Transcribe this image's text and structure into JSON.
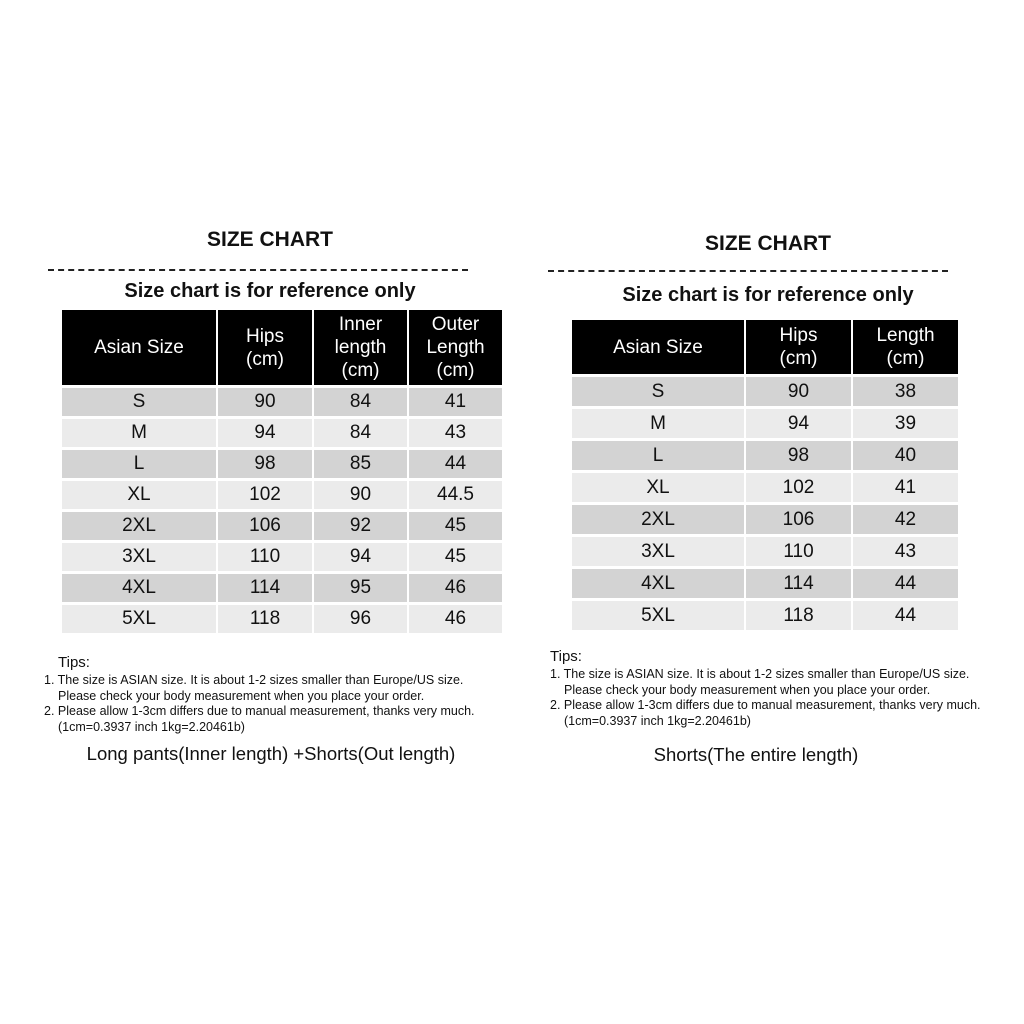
{
  "left": {
    "title": "SIZE CHART",
    "subtitle": "Size chart is for reference only",
    "headers": [
      "Asian Size",
      "Hips\n(cm)",
      "Inner\nlength\n(cm)",
      "Outer\nLength\n(cm)"
    ],
    "rows": [
      [
        "S",
        "90",
        "84",
        "41"
      ],
      [
        "M",
        "94",
        "84",
        "43"
      ],
      [
        "L",
        "98",
        "85",
        "44"
      ],
      [
        "XL",
        "102",
        "90",
        "44.5"
      ],
      [
        "2XL",
        "106",
        "92",
        "45"
      ],
      [
        "3XL",
        "110",
        "94",
        "45"
      ],
      [
        "4XL",
        "114",
        "95",
        "46"
      ],
      [
        "5XL",
        "118",
        "96",
        "46"
      ]
    ],
    "tips_heading": "Tips:",
    "tips": [
      "1. The size is ASIAN size. It is about 1-2 sizes smaller than Europe/US size.",
      "Please check your body measurement when you place your order.",
      "2. Please allow 1-3cm differs due to manual measurement, thanks very much.",
      "(1cm=0.3937 inch 1kg=2.20461b)"
    ],
    "caption": "Long pants(Inner length) +Shorts(Out length)"
  },
  "right": {
    "title": "SIZE CHART",
    "subtitle": "Size chart is for reference only",
    "headers": [
      "Asian Size",
      "Hips\n(cm)",
      "Length\n(cm)"
    ],
    "rows": [
      [
        "S",
        "90",
        "38"
      ],
      [
        "M",
        "94",
        "39"
      ],
      [
        "L",
        "98",
        "40"
      ],
      [
        "XL",
        "102",
        "41"
      ],
      [
        "2XL",
        "106",
        "42"
      ],
      [
        "3XL",
        "110",
        "43"
      ],
      [
        "4XL",
        "114",
        "44"
      ],
      [
        "5XL",
        "118",
        "44"
      ]
    ],
    "tips_heading": "Tips:",
    "tips": [
      "1. The size is ASIAN size. It is about 1-2 sizes smaller than Europe/US size.",
      "Please check your body measurement when you place your order.",
      "2. Please allow 1-3cm differs due to manual measurement, thanks very much.",
      "(1cm=0.3937 inch 1kg=2.20461b)"
    ],
    "caption": "Shorts(The entire length)"
  }
}
